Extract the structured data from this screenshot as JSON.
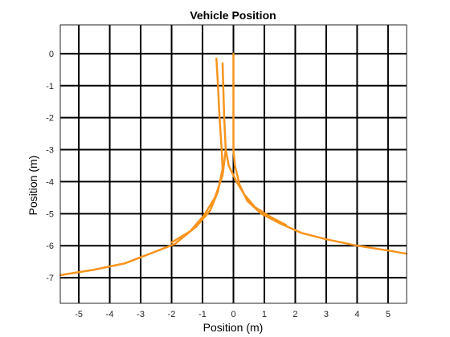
{
  "chart_data": {
    "type": "line",
    "title": "Vehicle Position",
    "xlabel": "Position (m)",
    "ylabel": "Position (m)",
    "xlim": [
      -5.6,
      5.6
    ],
    "ylim": [
      -7.8,
      0.9
    ],
    "xticks": [
      -5,
      -4,
      -3,
      -2,
      -1,
      0,
      1,
      2,
      3,
      4,
      5
    ],
    "yticks": [
      0,
      -1,
      -2,
      -3,
      -4,
      -5,
      -6,
      -7
    ],
    "grid": true,
    "color": "#f7941d",
    "series": [
      {
        "points": [
          [
            0,
            0
          ],
          [
            0,
            -1
          ],
          [
            0,
            -2
          ],
          [
            0,
            -3
          ],
          [
            0.05,
            -3.5
          ],
          [
            0.2,
            -4.1
          ],
          [
            0.45,
            -4.6
          ],
          [
            0.9,
            -5.0
          ],
          [
            1.5,
            -5.3
          ],
          [
            2.2,
            -5.6
          ],
          [
            3.0,
            -5.8
          ],
          [
            4.0,
            -6.0
          ],
          [
            5.0,
            -6.15
          ],
          [
            5.6,
            -6.25
          ]
        ]
      },
      {
        "points": [
          [
            -0.55,
            -0.15
          ],
          [
            -0.5,
            -1
          ],
          [
            -0.45,
            -2
          ],
          [
            -0.38,
            -3
          ],
          [
            -0.35,
            -3.6
          ],
          [
            -0.5,
            -4.3
          ],
          [
            -0.75,
            -4.9
          ],
          [
            -1.2,
            -5.4
          ],
          [
            -1.9,
            -5.95
          ],
          [
            -2.7,
            -6.25
          ],
          [
            -3.5,
            -6.55
          ],
          [
            -4.5,
            -6.75
          ],
          [
            -5.6,
            -6.92
          ]
        ]
      },
      {
        "points": [
          [
            -0.35,
            -0.3
          ],
          [
            -0.33,
            -1
          ],
          [
            -0.3,
            -2
          ],
          [
            -0.25,
            -3
          ],
          [
            -0.15,
            -3.5
          ],
          [
            0.1,
            -4.0
          ],
          [
            0.35,
            -4.4
          ],
          [
            0.7,
            -4.8
          ],
          [
            1.2,
            -5.1
          ],
          [
            1.7,
            -5.35
          ]
        ]
      },
      {
        "points": [
          [
            -0.25,
            -3.0
          ],
          [
            -0.35,
            -3.8
          ],
          [
            -0.6,
            -4.5
          ],
          [
            -0.95,
            -5.05
          ],
          [
            -1.4,
            -5.55
          ],
          [
            -2.0,
            -5.9
          ]
        ]
      }
    ]
  }
}
